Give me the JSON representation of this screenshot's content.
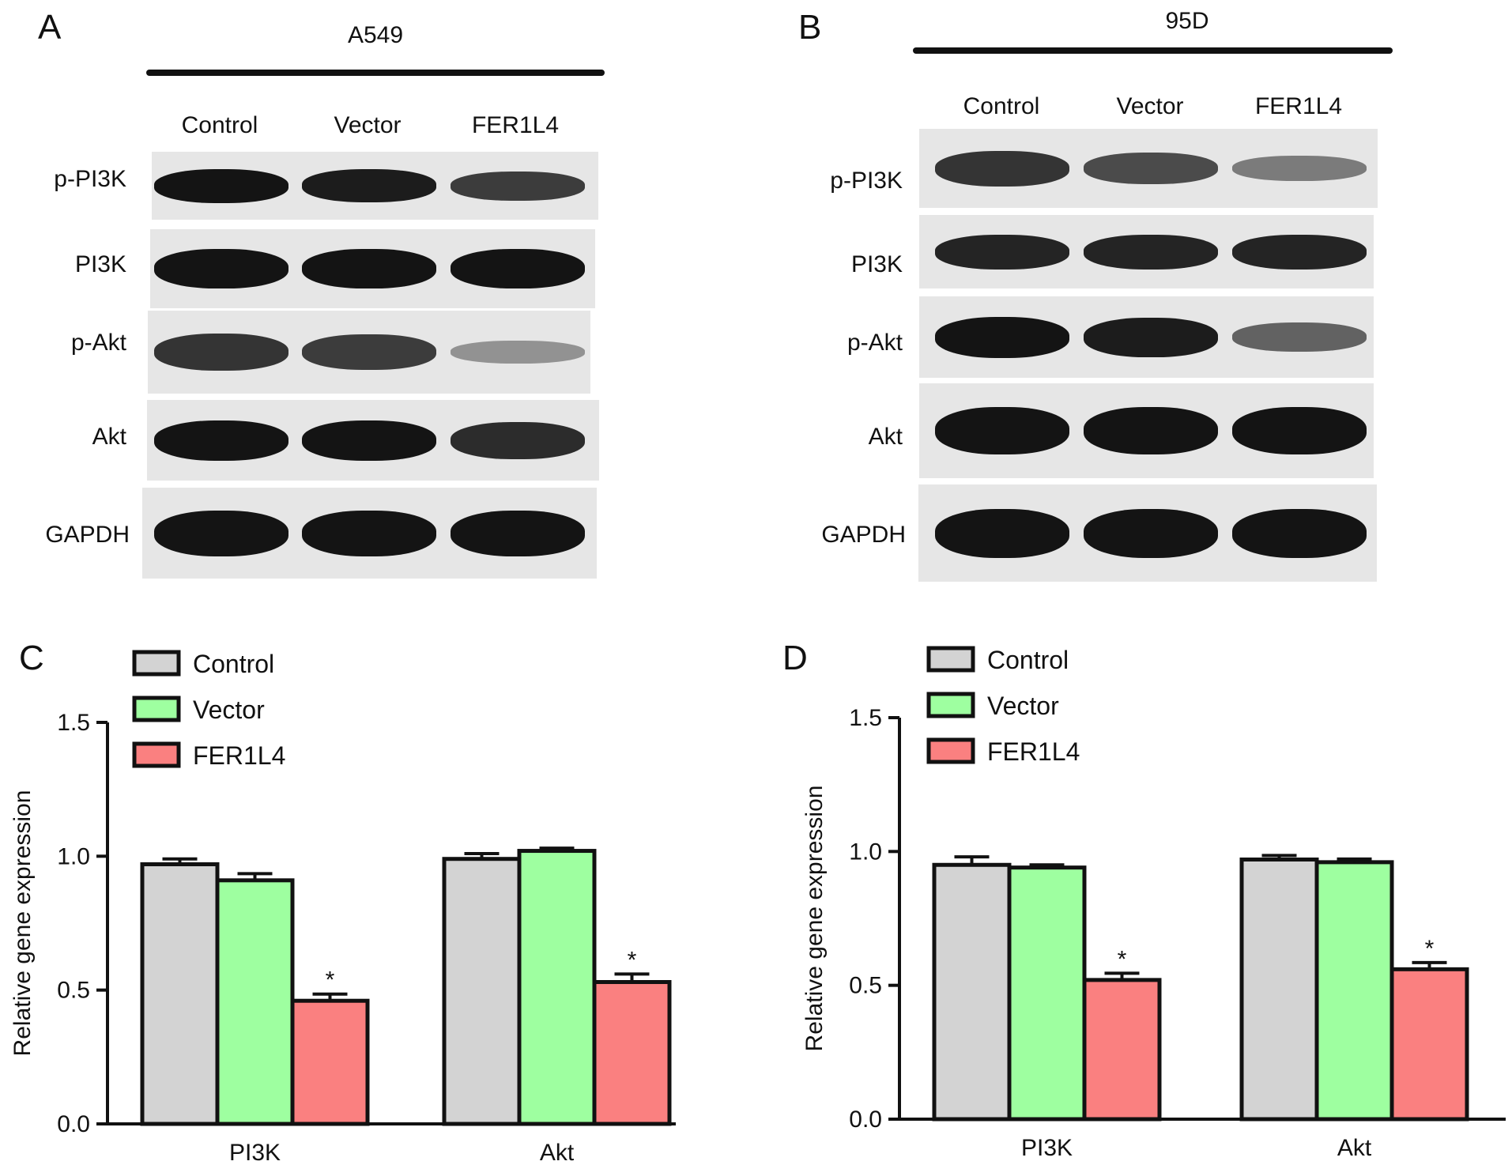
{
  "panels": {
    "A": {
      "letter": "A",
      "cell_line": "A549"
    },
    "B": {
      "letter": "B",
      "cell_line": "95D"
    },
    "C": {
      "letter": "C"
    },
    "D": {
      "letter": "D"
    }
  },
  "lanes": [
    "Control",
    "Vector",
    "FER1L4"
  ],
  "proteins": [
    "p-PI3K",
    "PI3K",
    "p-Akt",
    "Akt",
    "GAPDH"
  ],
  "band_intensity": {
    "A": [
      [
        1.0,
        0.95,
        0.75
      ],
      [
        1.0,
        1.0,
        1.0
      ],
      [
        0.8,
        0.75,
        0.2
      ],
      [
        1.0,
        1.0,
        0.85
      ],
      [
        1.0,
        1.0,
        1.0
      ]
    ],
    "B": [
      [
        0.8,
        0.65,
        0.35
      ],
      [
        0.9,
        0.9,
        0.9
      ],
      [
        1.0,
        0.95,
        0.5
      ],
      [
        1.0,
        1.0,
        1.0
      ],
      [
        1.0,
        1.0,
        1.0
      ]
    ]
  },
  "colors": {
    "Control": "#d3d3d3",
    "Vector": "#9effa0",
    "FER1L4": "#fa8080"
  },
  "chart_data": [
    {
      "type": "bar",
      "panel": "C",
      "categories": [
        "PI3K",
        "Akt"
      ],
      "series": [
        {
          "name": "Control",
          "values": [
            0.97,
            0.99
          ],
          "errors": [
            0.02,
            0.02
          ]
        },
        {
          "name": "Vector",
          "values": [
            0.91,
            1.02
          ],
          "errors": [
            0.025,
            0.01
          ]
        },
        {
          "name": "FER1L4",
          "values": [
            0.46,
            0.53
          ],
          "errors": [
            0.025,
            0.03
          ]
        }
      ],
      "significance": [
        "",
        "",
        "*"
      ],
      "ylabel": "Relative gene expression",
      "ylim": [
        0,
        1.5
      ],
      "yticks": [
        "0.0",
        "0.5",
        "1.0",
        "1.5"
      ],
      "legend": "top-left",
      "grid": false
    },
    {
      "type": "bar",
      "panel": "D",
      "categories": [
        "PI3K",
        "Akt"
      ],
      "series": [
        {
          "name": "Control",
          "values": [
            0.95,
            0.97
          ],
          "errors": [
            0.03,
            0.015
          ]
        },
        {
          "name": "Vector",
          "values": [
            0.94,
            0.96
          ],
          "errors": [
            0.01,
            0.012
          ]
        },
        {
          "name": "FER1L4",
          "values": [
            0.52,
            0.56
          ],
          "errors": [
            0.025,
            0.025
          ]
        }
      ],
      "significance": [
        "",
        "",
        "*"
      ],
      "ylabel": "Relative gene expression",
      "ylim": [
        0,
        1.5
      ],
      "yticks": [
        "0.0",
        "0.5",
        "1.0",
        "1.5"
      ],
      "legend": "top-left",
      "grid": false
    }
  ]
}
